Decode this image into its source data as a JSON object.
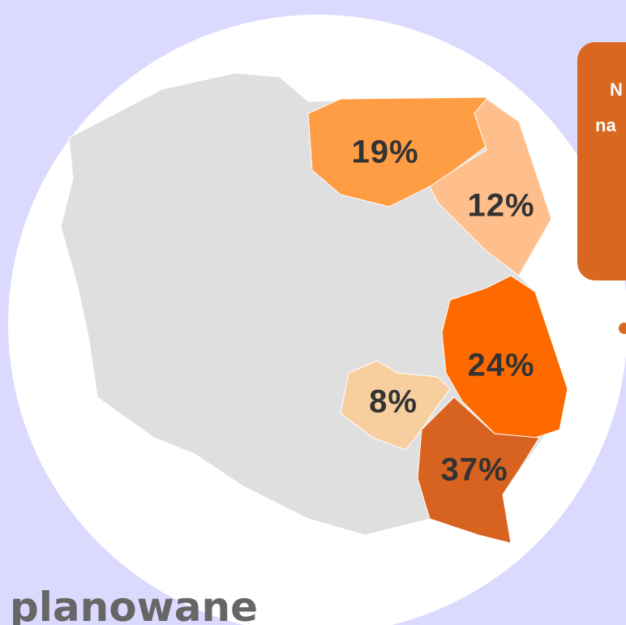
{
  "map": {
    "regions": [
      {
        "label": "19%",
        "color": "#ff9d45"
      },
      {
        "label": "12%",
        "color": "#ffbf8c"
      },
      {
        "label": "24%",
        "color": "#ff6a00"
      },
      {
        "label": "8%",
        "color": "#f7cf9f"
      },
      {
        "label": "37%",
        "color": "#d8621f"
      }
    ],
    "base_color": "#e0dfdf",
    "callout": {
      "lines": [
        "N",
        "na"
      ],
      "color": "#d8671f"
    },
    "caption": "planowane"
  }
}
